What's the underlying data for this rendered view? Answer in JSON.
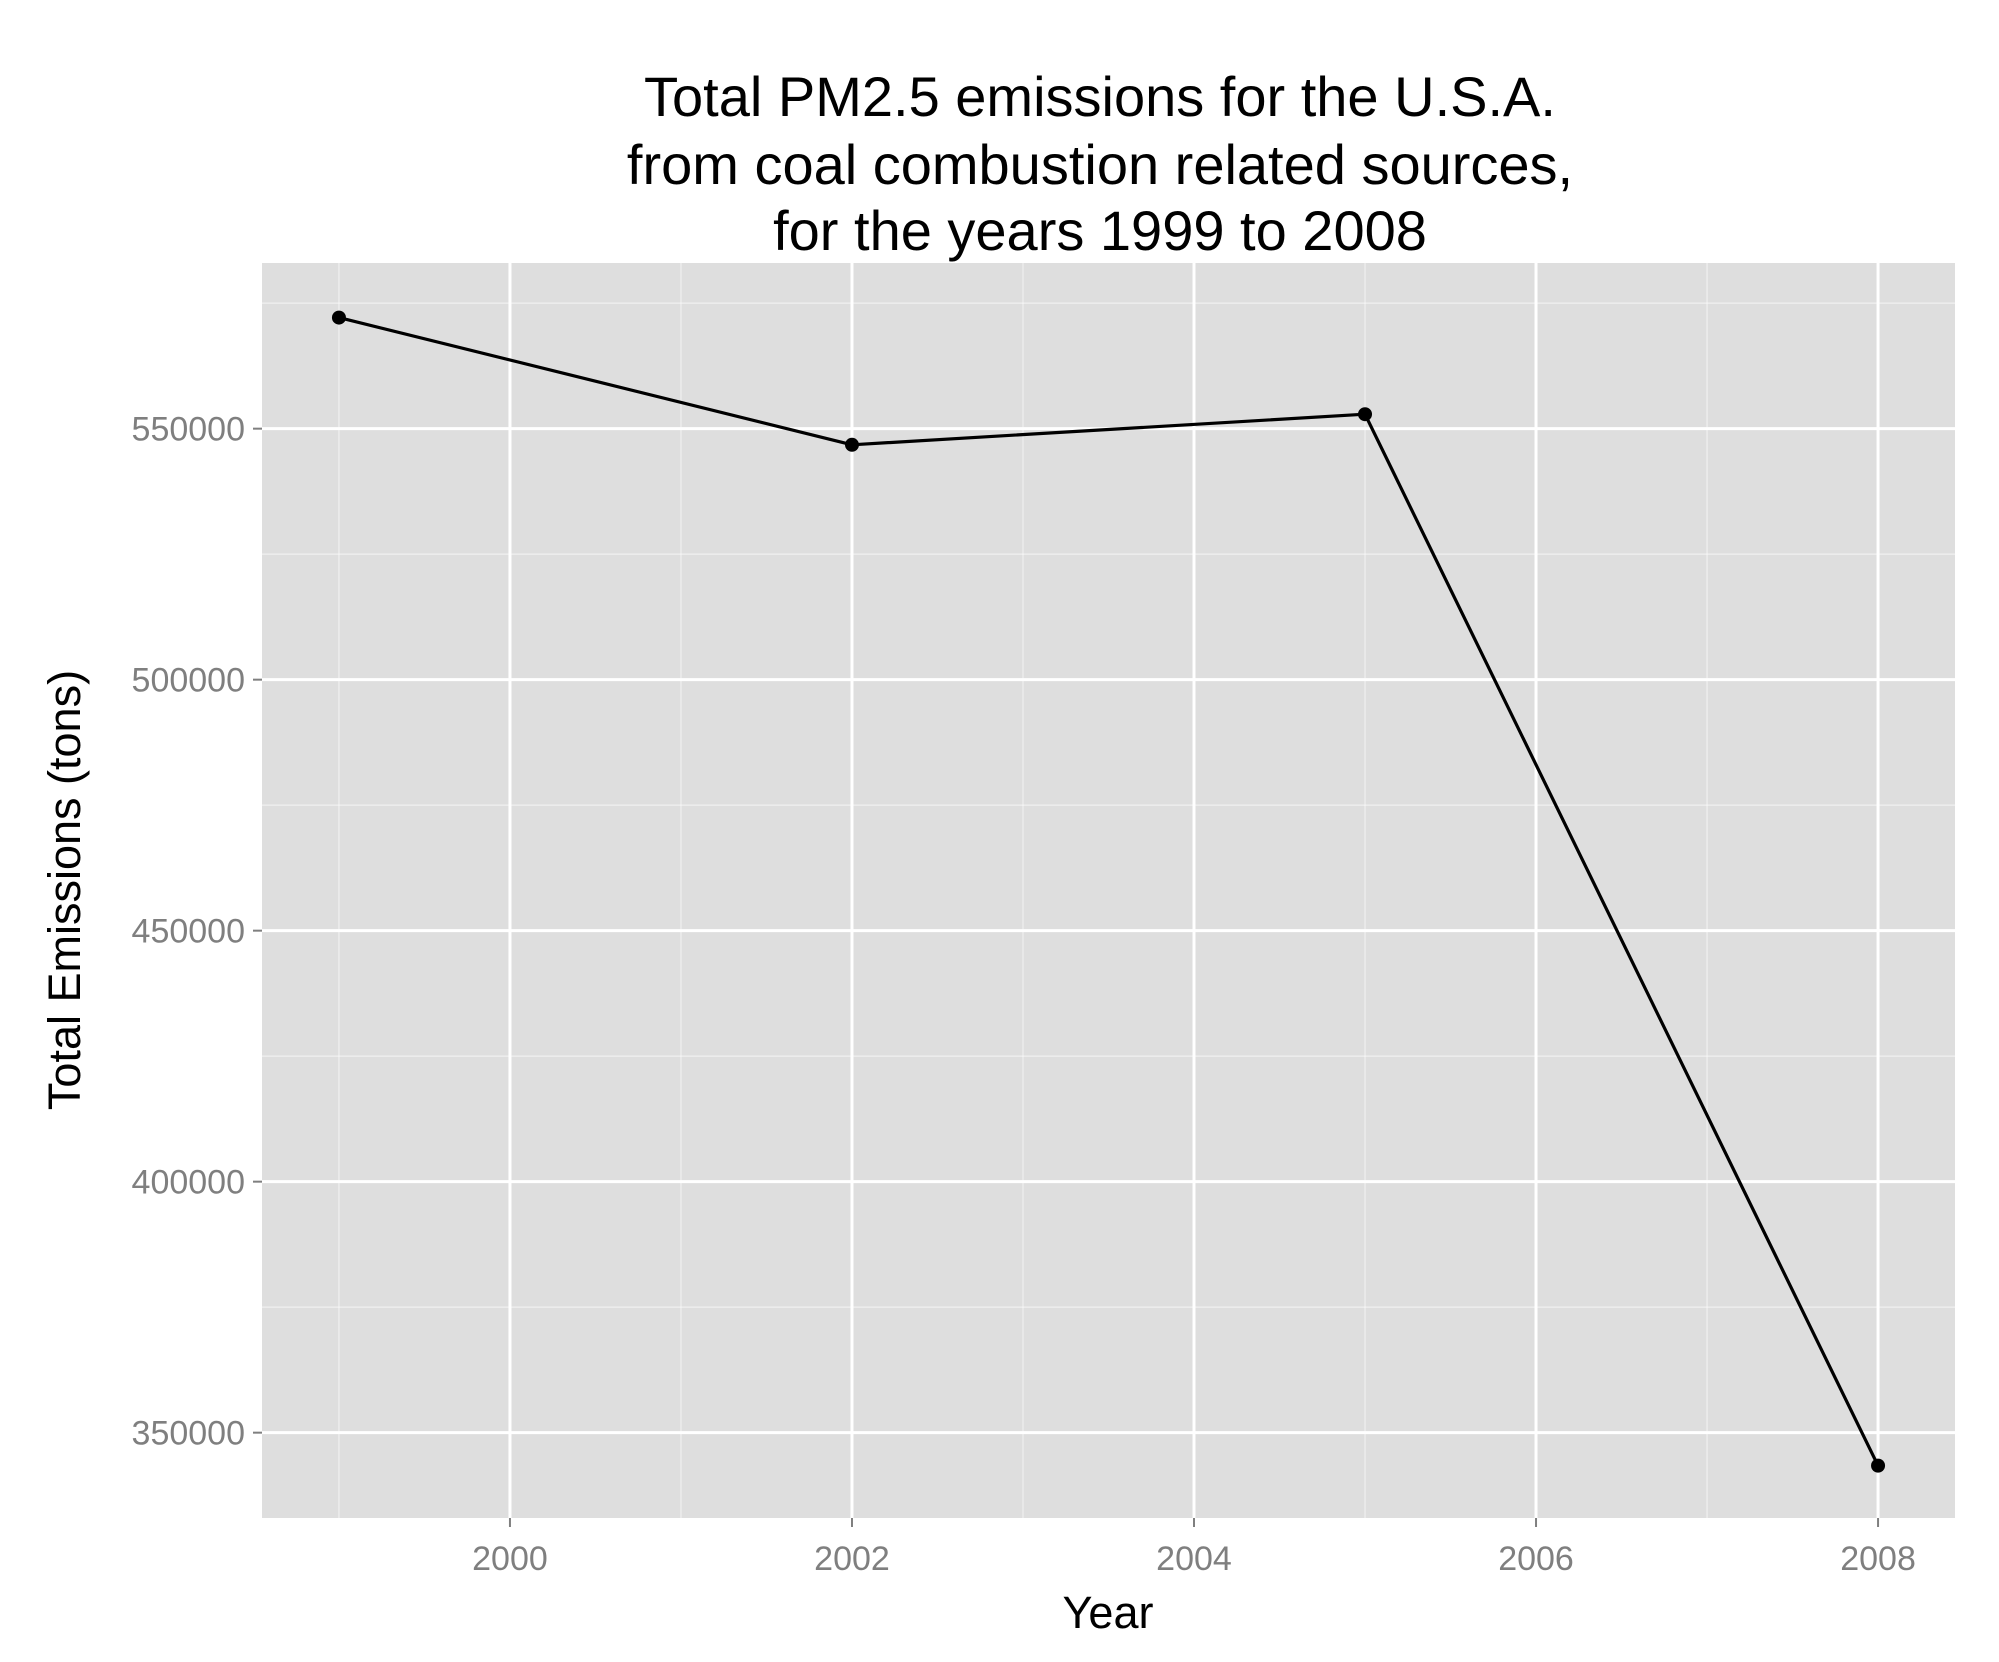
{
  "chart_data": {
    "type": "line",
    "title_lines": [
      "Total PM2.5 emissions for the U.S.A.",
      "from coal combustion related sources,",
      "for the years 1999 to 2008"
    ],
    "xlabel": "Year",
    "ylabel": "Total Emissions (tons)",
    "x": [
      1999,
      2002,
      2005,
      2008
    ],
    "series": [
      {
        "values": [
          572126,
          546789,
          552881,
          343432
        ]
      }
    ],
    "xlim": [
      1998.55,
      2008.45
    ],
    "ylim": [
      333000,
      583000
    ],
    "x_ticks": [
      2000,
      2002,
      2004,
      2006,
      2008
    ],
    "y_ticks": [
      350000,
      400000,
      450000,
      500000,
      550000
    ],
    "grid": true,
    "colors": {
      "panel_background": "#dedede",
      "grid": "#ffffff",
      "line": "#000000",
      "tick_label": "#7f7f7f"
    }
  }
}
